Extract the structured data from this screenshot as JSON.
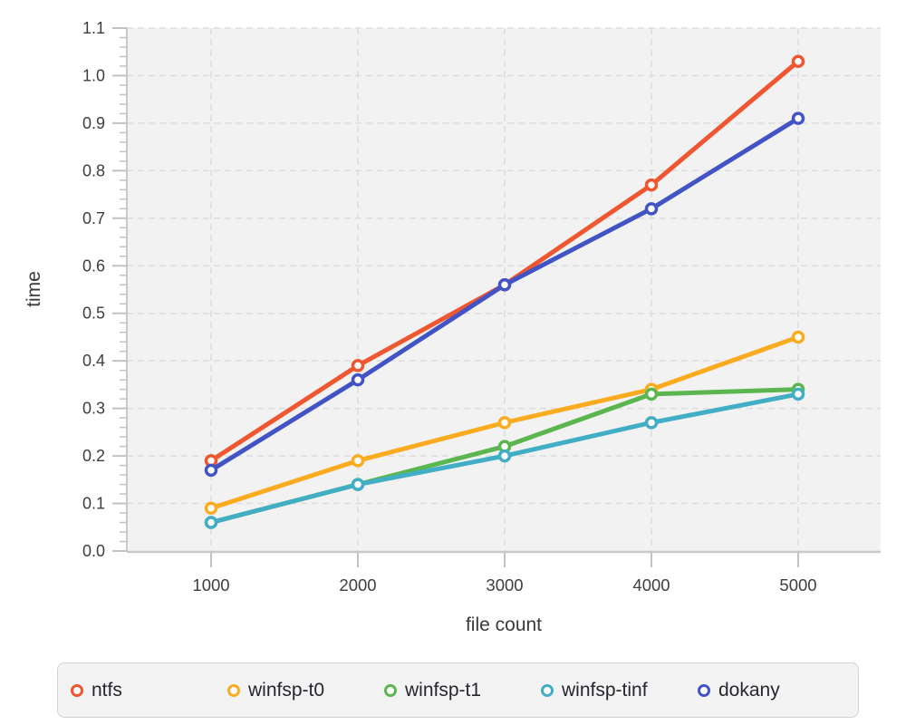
{
  "chart_data": {
    "type": "line",
    "x": [
      1000,
      2000,
      3000,
      4000,
      5000
    ],
    "x_ticks": [
      "1000",
      "2000",
      "3000",
      "4000",
      "5000"
    ],
    "y_ticks": [
      "0.0",
      "0.1",
      "0.2",
      "0.3",
      "0.4",
      "0.5",
      "0.6",
      "0.7",
      "0.8",
      "0.9",
      "1.0",
      "1.1"
    ],
    "series": [
      {
        "name": "ntfs",
        "color": "#f0562f",
        "values": [
          0.19,
          0.39,
          0.56,
          0.77,
          1.03
        ]
      },
      {
        "name": "winfsp-t0",
        "color": "#fbab1f",
        "values": [
          0.09,
          0.19,
          0.27,
          0.34,
          0.45
        ]
      },
      {
        "name": "winfsp-t1",
        "color": "#5bb64f",
        "values": [
          0.06,
          0.14,
          0.22,
          0.33,
          0.34
        ]
      },
      {
        "name": "winfsp-tinf",
        "color": "#42aec5",
        "values": [
          0.06,
          0.14,
          0.2,
          0.27,
          0.33
        ]
      },
      {
        "name": "dokany",
        "color": "#4254c5",
        "values": [
          0.17,
          0.36,
          0.56,
          0.72,
          0.91
        ]
      }
    ],
    "title": "",
    "xlabel": "file count",
    "ylabel": "time",
    "ylim": [
      0,
      1.1
    ],
    "y_tick_step": 0.1,
    "y_minor_step": 0.02,
    "grid": true,
    "legend_position": "bottom",
    "plot_bg": "#f2f2f3",
    "grid_color": "#dddddd",
    "axis_color": "#c9c9c9",
    "tick_color": "#c2c2c2",
    "tick_label_color": "#3e3e3e"
  }
}
